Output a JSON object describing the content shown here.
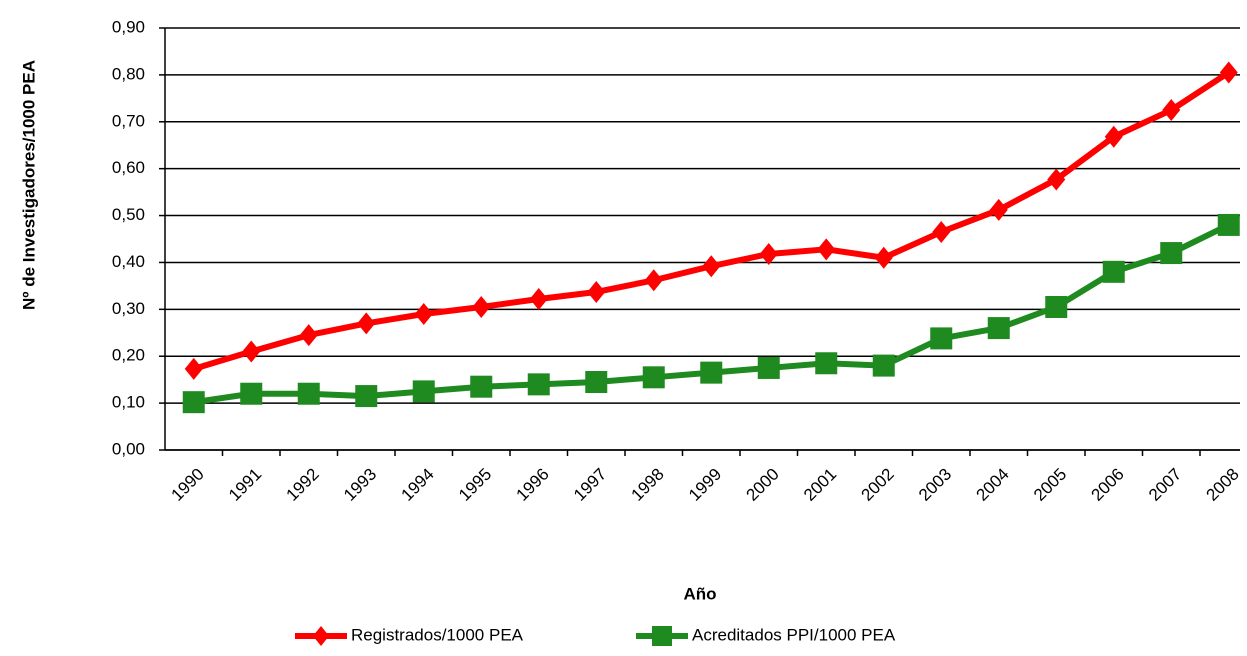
{
  "chart_data": {
    "type": "line",
    "x_label": "Año",
    "y_label": "Nº de Investigadores/1000 PEA",
    "categories": [
      "1990",
      "1991",
      "1992",
      "1993",
      "1994",
      "1995",
      "1996",
      "1997",
      "1998",
      "1999",
      "2000",
      "2001",
      "2002",
      "2003",
      "2004",
      "2005",
      "2006",
      "2007",
      "2008"
    ],
    "series": [
      {
        "name": "Registrados/1000 PEA",
        "color": "#ff0000",
        "marker": "diamond",
        "values": [
          0.173,
          0.21,
          0.245,
          0.27,
          0.29,
          0.305,
          0.322,
          0.337,
          0.362,
          0.392,
          0.418,
          0.428,
          0.41,
          0.465,
          0.512,
          0.577,
          0.668,
          0.725,
          0.805
        ]
      },
      {
        "name": "Acreditados PPI/1000 PEA",
        "color": "#1f8a1f",
        "marker": "square",
        "values": [
          0.102,
          0.12,
          0.12,
          0.115,
          0.125,
          0.135,
          0.14,
          0.145,
          0.155,
          0.165,
          0.175,
          0.185,
          0.18,
          0.238,
          0.26,
          0.305,
          0.38,
          0.42,
          0.48
        ]
      }
    ],
    "ylim": [
      0,
      0.9
    ],
    "yticks": [
      {
        "value": 0,
        "label": "0,00"
      },
      {
        "value": 0.1,
        "label": "0,10"
      },
      {
        "value": 0.2,
        "label": "0,20"
      },
      {
        "value": 0.3,
        "label": "0,30"
      },
      {
        "value": 0.4,
        "label": "0,40"
      },
      {
        "value": 0.5,
        "label": "0,50"
      },
      {
        "value": 0.6,
        "label": "0,60"
      },
      {
        "value": 0.7,
        "label": "0,70"
      },
      {
        "value": 0.8,
        "label": "0,80"
      },
      {
        "value": 0.9,
        "label": "0,90"
      }
    ],
    "grid": true,
    "legend": "bottom"
  }
}
